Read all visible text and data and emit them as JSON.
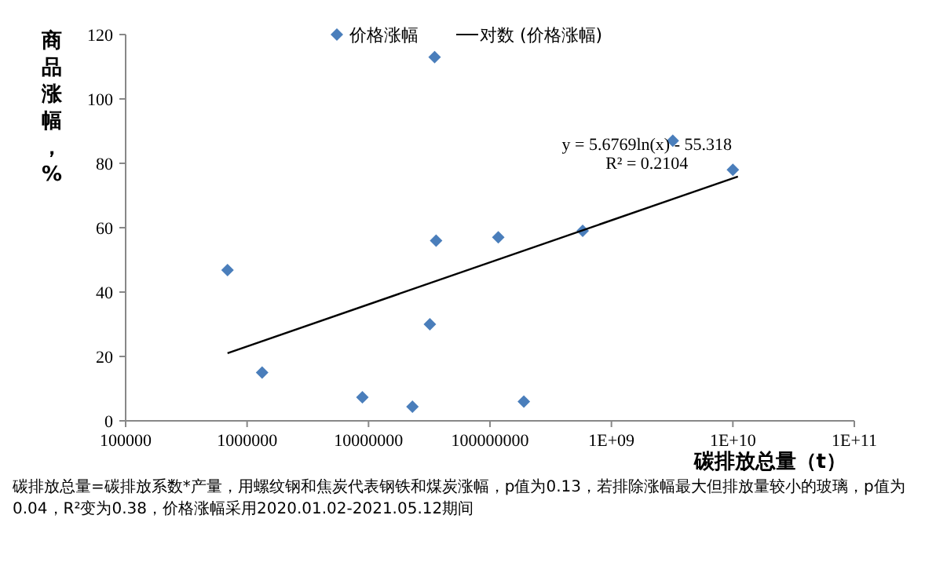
{
  "chart_data": {
    "type": "scatter",
    "xlabel": "碳排放总量（t）",
    "ylabel": "商品涨幅，%",
    "log": "x",
    "marker": "diamond",
    "legend": "top",
    "grid": false,
    "xlim": [
      100000,
      100000000000
    ],
    "xticks": [
      100000,
      1000000,
      10000000,
      100000000,
      {
        "value": 1000000000,
        "label": "1E+09"
      },
      {
        "value": 10000000000,
        "label": "1E+10"
      },
      {
        "value": 100000000000,
        "label": "1E+11"
      }
    ],
    "ylim": [
      0,
      120
    ],
    "yticks": [
      0,
      20,
      40,
      60,
      80,
      100,
      120
    ],
    "series": [
      {
        "name": "价格涨幅",
        "color": "#4a7ebb",
        "x": [
          690000,
          1330000,
          8900000,
          23000000,
          32000000,
          35000000,
          36000000,
          117000000,
          190000000,
          580000000,
          3200000000,
          10000000000
        ],
        "values": [
          46.8,
          15,
          7.3,
          4.4,
          30,
          113,
          56,
          57,
          6,
          59,
          87,
          78
        ]
      },
      {
        "name": "对数 (价格涨幅)",
        "type": "line",
        "color": "#000000",
        "line_style": "solid",
        "marker": "none",
        "x": [
          690000,
          11000000000
        ],
        "values": [
          21.0,
          75.9
        ]
      }
    ],
    "annotations": [
      "y = 5.6769ln(x) - 55.318",
      "R² = 0.2104",
      "碳排放总量=碳排放系数*产量，用螺纹钢和焦炭代表钢铁和煤炭涨幅，p值为0.13，若排除涨幅最大但排放量较小的玻璃，p值为0.04，R²变为0.38，价格涨幅采用2020.01.02-2021.05.12期间"
    ]
  }
}
